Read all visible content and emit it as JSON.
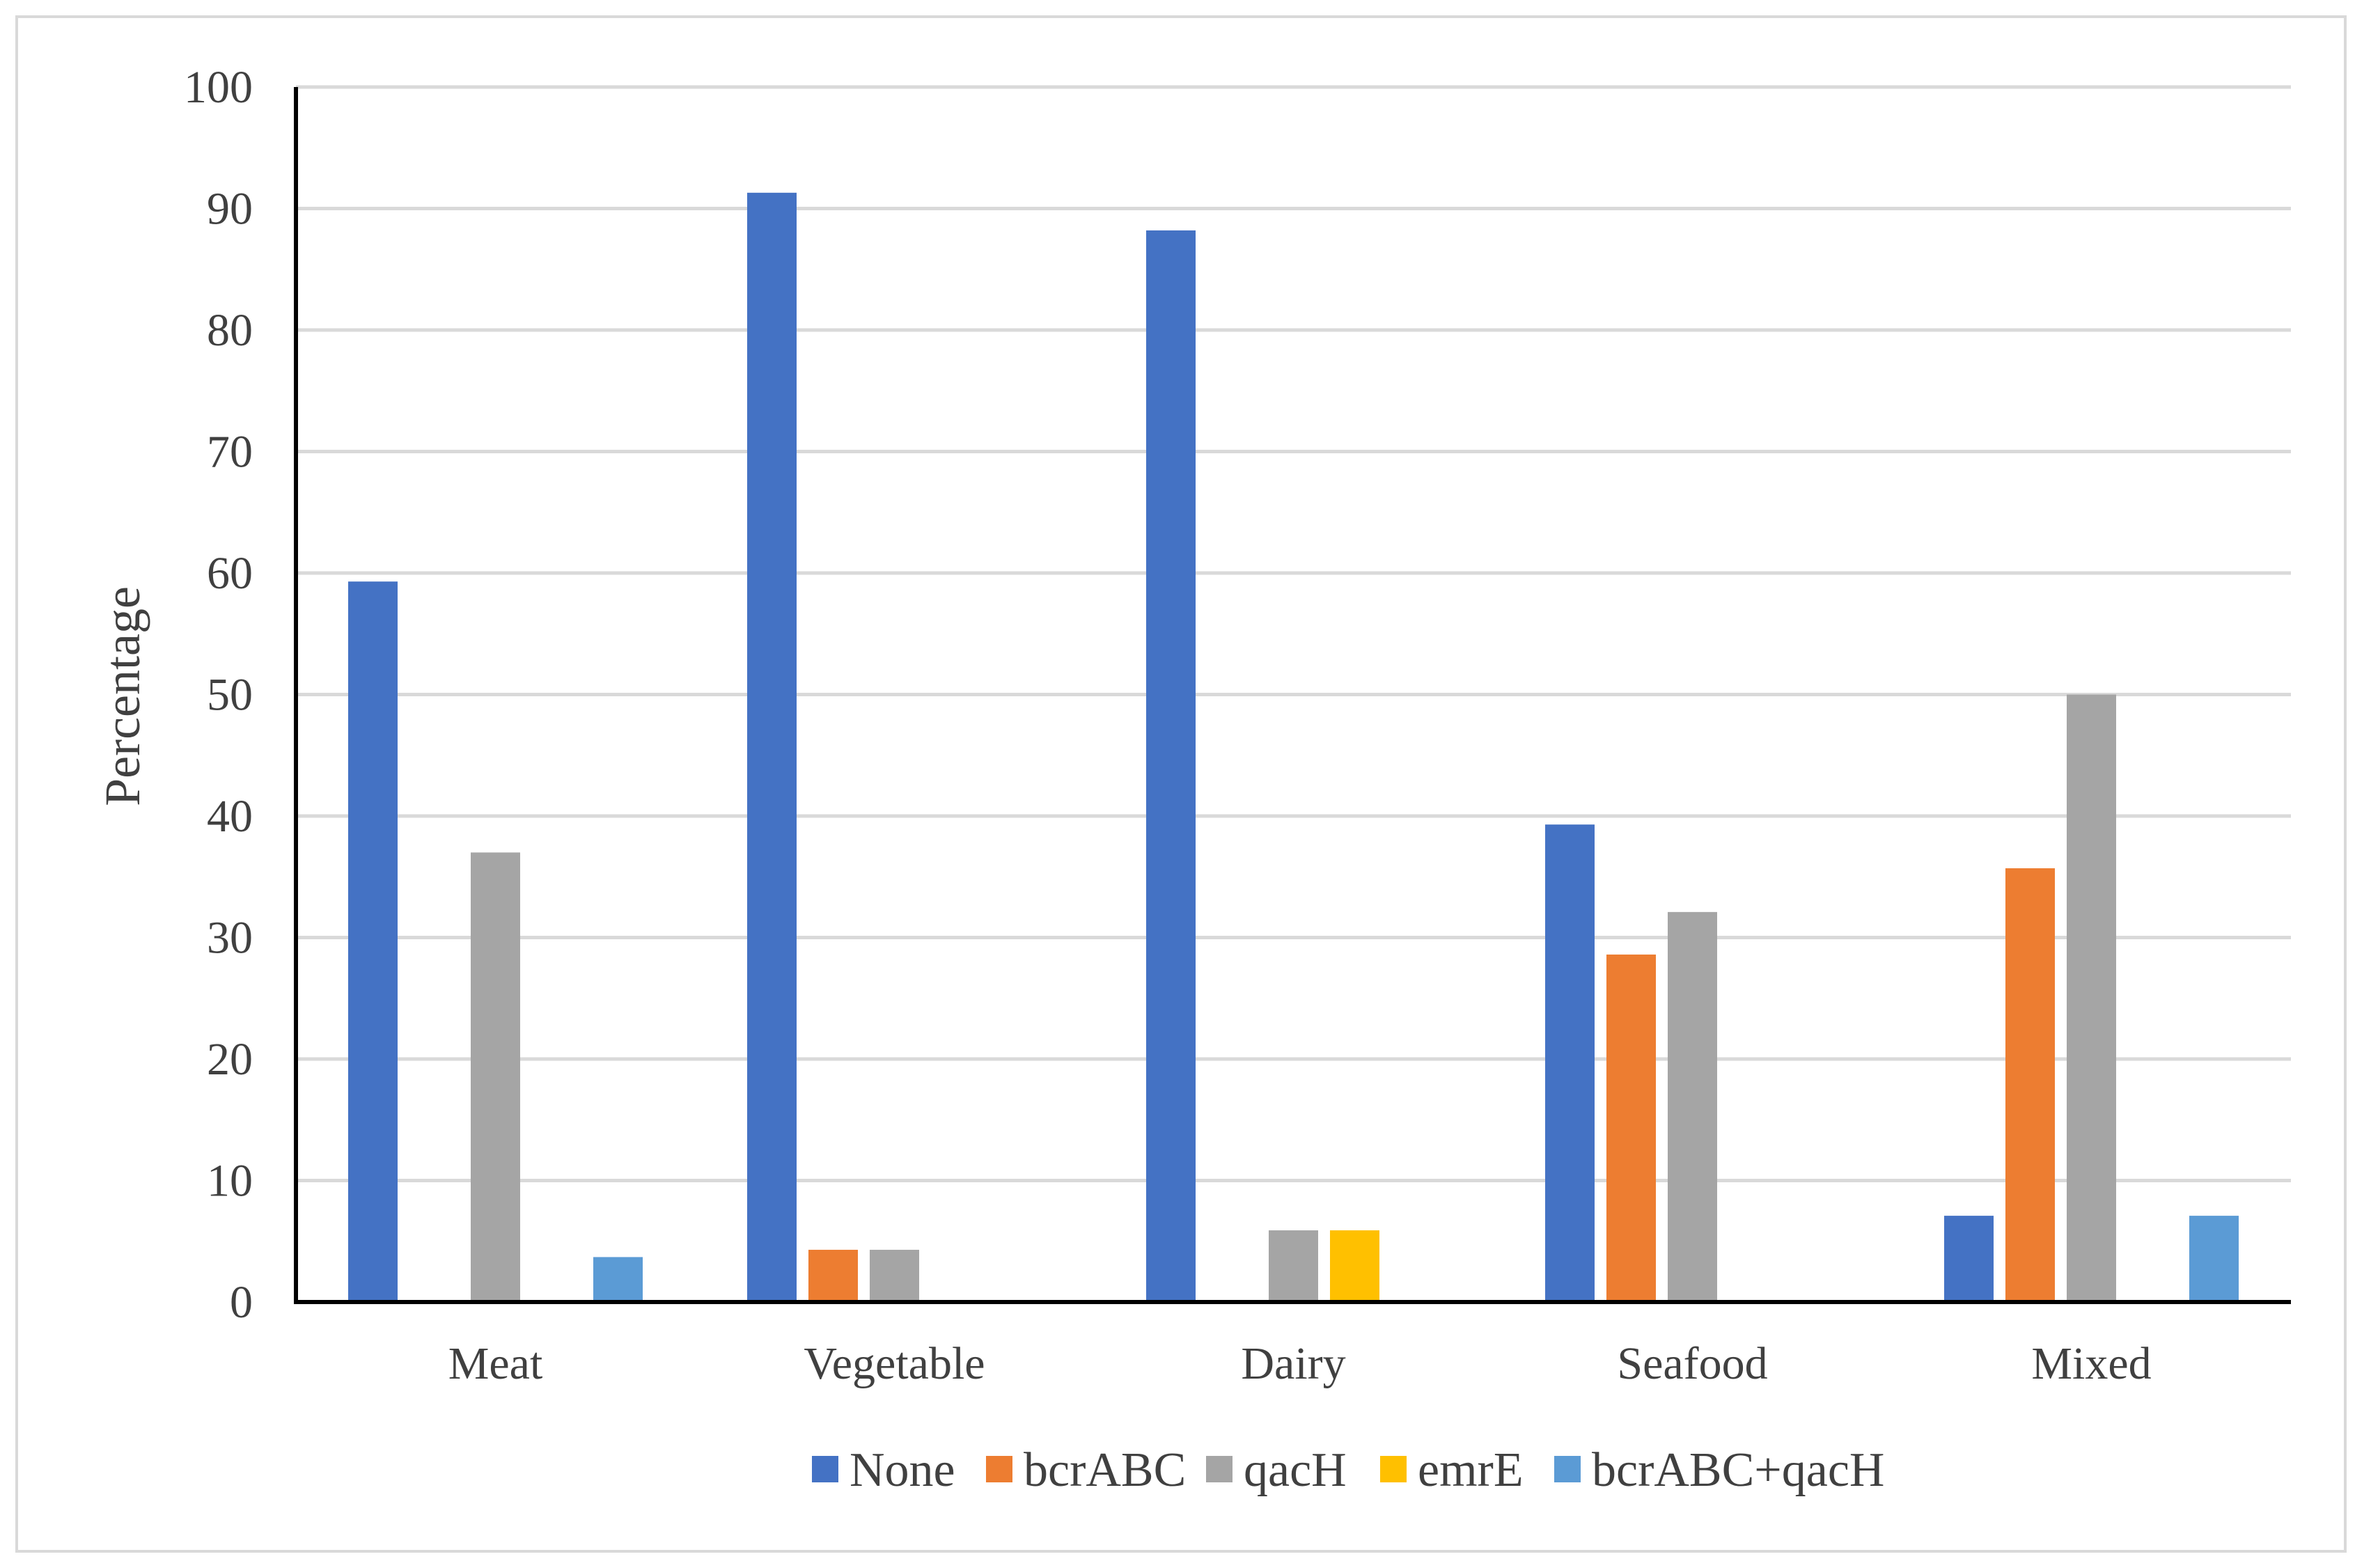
{
  "chart_data": {
    "type": "bar",
    "title": "",
    "xlabel": "",
    "ylabel": "Percentage",
    "ylim": [
      0,
      100
    ],
    "yticks": [
      0,
      10,
      20,
      30,
      40,
      50,
      60,
      70,
      80,
      90,
      100
    ],
    "grid": true,
    "legend_position": "bottom",
    "categories": [
      "Meat",
      "Vegetable",
      "Dairy",
      "Seafood",
      "Mixed"
    ],
    "series": [
      {
        "name": "None",
        "color": "#4472C4",
        "values": [
          59.3,
          91.3,
          88.2,
          39.3,
          7.1
        ]
      },
      {
        "name": "bcrABC",
        "color": "#ED7D31",
        "values": [
          0,
          4.3,
          0,
          28.6,
          35.7
        ]
      },
      {
        "name": "qacH",
        "color": "#A5A5A5",
        "values": [
          37.0,
          4.3,
          5.9,
          32.1,
          50.0
        ]
      },
      {
        "name": "emrE",
        "color": "#FFC000",
        "values": [
          0,
          0,
          5.9,
          0,
          0
        ]
      },
      {
        "name": "bcrABC+qacH",
        "color": "#5B9BD5",
        "values": [
          3.7,
          0,
          0,
          0,
          7.1
        ]
      }
    ]
  }
}
